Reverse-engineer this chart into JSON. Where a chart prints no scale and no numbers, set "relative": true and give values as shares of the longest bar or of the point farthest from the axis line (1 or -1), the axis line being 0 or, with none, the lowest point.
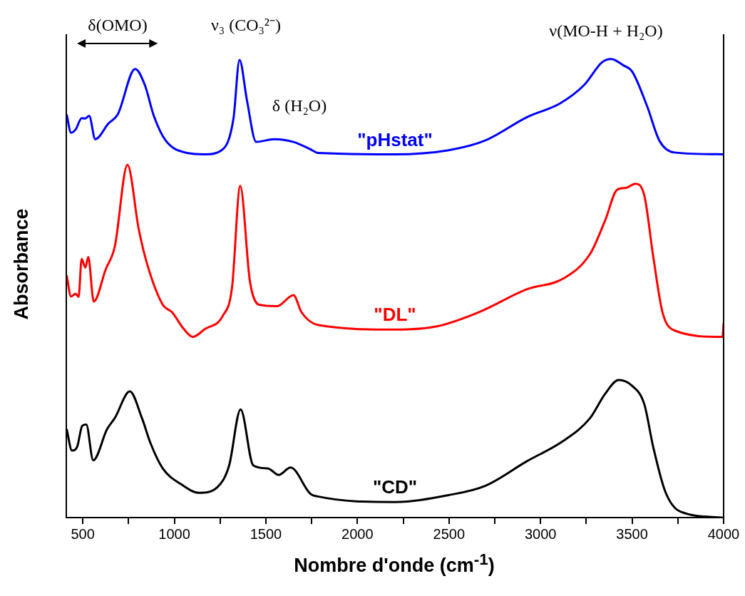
{
  "chart_data": {
    "type": "line",
    "relative": true,
    "xlabel": "Nombre d'onde (cm$^{-1}$)",
    "ylabel": "Absorbance",
    "xlim": [
      410,
      4000
    ],
    "xticks": [
      500,
      {
        "value": 750,
        "label": null
      },
      1000,
      {
        "value": 1250,
        "label": null
      },
      1500,
      {
        "value": 1750,
        "label": null
      },
      2000,
      {
        "value": 2250,
        "label": null
      },
      2500,
      {
        "value": 2750,
        "label": null
      },
      3000,
      {
        "value": 3250,
        "label": null
      },
      3500,
      {
        "value": 3750,
        "label": null
      },
      4000
    ],
    "tick_labels": "x",
    "grid": false,
    "legend": false,
    "series": [
      {
        "name": "\"pHstat\"",
        "color": "#0000ff",
        "x": [
          412,
          436,
          461,
          494,
          514,
          535,
          568,
          640,
          691,
          786,
          839,
          888,
          953,
          1070,
          1167,
          1265,
          1323,
          1356,
          1397,
          1447,
          1546,
          1651,
          1743,
          1784,
          2204,
          2498,
          2697,
          2926,
          3107,
          3238,
          3337,
          3386,
          3452,
          3501,
          3583,
          3649,
          3731,
          4000
        ],
        "values": [
          0.879,
          0.839,
          0.846,
          0.871,
          0.87,
          0.876,
          0.825,
          0.859,
          0.879,
          0.978,
          0.943,
          0.876,
          0.822,
          0.795,
          0.792,
          0.803,
          0.87,
          0.998,
          0.909,
          0.819,
          0.825,
          0.819,
          0.803,
          0.795,
          0.792,
          0.801,
          0.822,
          0.873,
          0.903,
          0.943,
          0.993,
          1.0,
          0.986,
          0.972,
          0.896,
          0.822,
          0.796,
          0.792
        ]
      },
      {
        "name": "\"DL\"",
        "color": "#ff0000",
        "x": [
          412,
          436,
          461,
          477,
          494,
          514,
          530,
          560,
          625,
          675,
          744,
          806,
          855,
          937,
          987,
          1052,
          1101,
          1167,
          1265,
          1315,
          1360,
          1413,
          1464,
          1561,
          1651,
          1694,
          1784,
          2204,
          2434,
          2664,
          2926,
          3124,
          3271,
          3353,
          3419,
          3468,
          3518,
          3567,
          3616,
          3666,
          3731,
          3994,
          4000
        ],
        "values": [
          0.528,
          0.482,
          0.488,
          0.481,
          0.564,
          0.545,
          0.568,
          0.471,
          0.541,
          0.591,
          0.769,
          0.628,
          0.548,
          0.464,
          0.448,
          0.411,
          0.394,
          0.411,
          0.44,
          0.501,
          0.723,
          0.515,
          0.464,
          0.461,
          0.485,
          0.448,
          0.42,
          0.41,
          0.417,
          0.448,
          0.498,
          0.521,
          0.575,
          0.648,
          0.715,
          0.719,
          0.728,
          0.702,
          0.568,
          0.448,
          0.408,
          0.394,
          0.424
        ]
      },
      {
        "name": "\"CD\"",
        "color": "#000000",
        "x": [
          412,
          441,
          469,
          497,
          519,
          557,
          633,
          675,
          757,
          823,
          872,
          937,
          1036,
          1135,
          1234,
          1299,
          1362,
          1431,
          1513,
          1569,
          1635,
          1743,
          1784,
          2204,
          2498,
          2697,
          2926,
          3124,
          3271,
          3353,
          3427,
          3501,
          3567,
          3616,
          3682,
          3764,
          3994
        ],
        "values": [
          0.193,
          0.146,
          0.154,
          0.2,
          0.203,
          0.125,
          0.193,
          0.217,
          0.275,
          0.217,
          0.16,
          0.107,
          0.073,
          0.054,
          0.066,
          0.113,
          0.236,
          0.114,
          0.107,
          0.093,
          0.109,
          0.052,
          0.046,
          0.034,
          0.049,
          0.069,
          0.123,
          0.167,
          0.217,
          0.27,
          0.3,
          0.287,
          0.247,
          0.153,
          0.056,
          0.013,
          0.0
        ]
      }
    ],
    "annotations": [
      "δ(OMO)",
      "ν₃ (CO₃²⁻)",
      "δ (H₂O)",
      "ν(MO-H + H₂O)"
    ]
  }
}
